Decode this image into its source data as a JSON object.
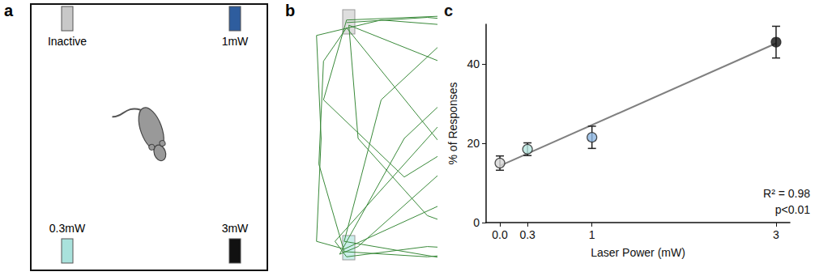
{
  "panel_labels": [
    "a",
    "b",
    "c"
  ],
  "arena": {
    "ports": [
      {
        "label": "Inactive",
        "color": "#c8c8c8"
      },
      {
        "label": "1mW",
        "color": "#2e5d9e"
      },
      {
        "label": "0.3mW",
        "color": "#a9e2dc"
      },
      {
        "label": "3mW",
        "color": "#111111"
      }
    ]
  },
  "trajectory": {
    "color": "#3a8a3a"
  },
  "chart_data": {
    "type": "scatter",
    "x": [
      0,
      0.3,
      1,
      3
    ],
    "values": [
      15,
      18.5,
      21.5,
      45.5
    ],
    "errors": [
      1.8,
      1.6,
      2.8,
      4
    ],
    "colors": [
      "#d6d6d6",
      "#b8e6e0",
      "#8db7e2",
      "#111111"
    ],
    "xlabel": "Laser Power (mW)",
    "ylabel": "% of Responses",
    "xlim": [
      -0.15,
      3.15
    ],
    "xticks": [
      {
        "value": 0,
        "label": "0.0"
      },
      0.3,
      1,
      3
    ],
    "ylim": [
      0,
      50
    ],
    "yticks": [
      0,
      20,
      40
    ],
    "fit_line": {
      "x": [
        0,
        3
      ],
      "values": [
        14.3,
        45.2
      ],
      "color": "#808080"
    },
    "annotations": [
      "R² = 0.98",
      "p<0.01"
    ],
    "grid": false
  }
}
